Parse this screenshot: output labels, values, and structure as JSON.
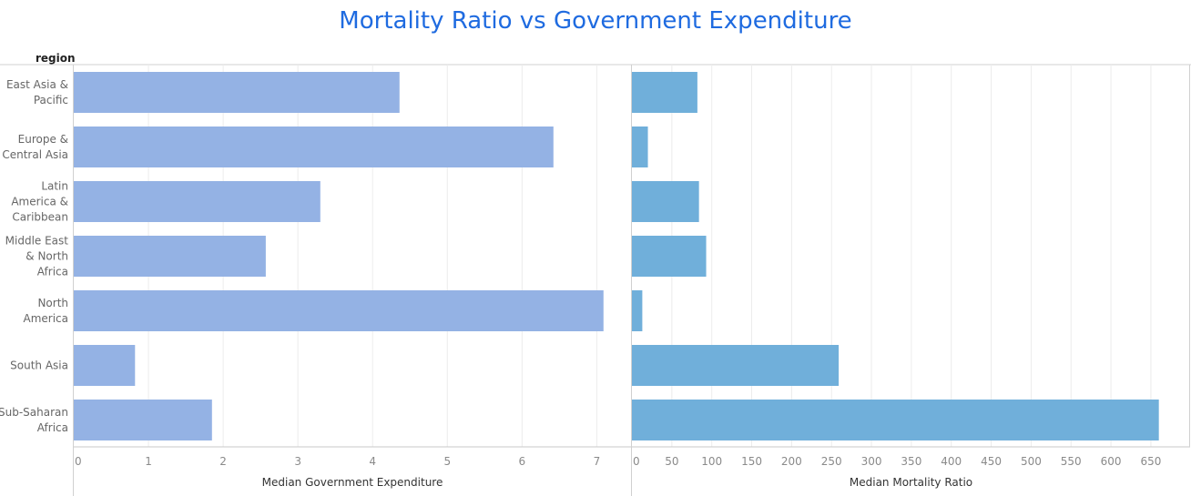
{
  "chart_data": {
    "type": "bar",
    "orientation": "horizontal",
    "title": "Mortality Ratio vs Government Expenditure",
    "row_header": "region",
    "categories": [
      "East Asia & Pacific",
      "Europe & Central Asia",
      "Latin America & Caribbean",
      "Middle East & North Africa",
      "North America",
      "South Asia",
      "Sub-Saharan Africa"
    ],
    "category_lines": [
      [
        "East Asia &",
        "Pacific"
      ],
      [
        "Europe &",
        "Central Asia"
      ],
      [
        "Latin",
        "America &",
        "Caribbean"
      ],
      [
        "Middle East",
        "& North",
        "Africa"
      ],
      [
        "North",
        "America"
      ],
      [
        "South Asia"
      ],
      [
        "Sub-Saharan",
        "Africa"
      ]
    ],
    "panels": [
      {
        "xlabel": "Median Government Expenditure",
        "values": [
          4.36,
          6.42,
          3.3,
          2.57,
          7.09,
          0.82,
          1.85
        ],
        "xlim": [
          0,
          7.3
        ],
        "ticks": [
          0,
          1,
          2,
          3,
          4,
          5,
          6,
          7
        ],
        "color": "#94b2e4"
      },
      {
        "xlabel": "Median Mortality Ratio",
        "values": [
          82,
          20,
          84,
          93,
          13,
          259,
          660
        ],
        "xlim": [
          0,
          690
        ],
        "ticks": [
          0,
          50,
          100,
          150,
          200,
          250,
          300,
          350,
          400,
          450,
          500,
          550,
          600,
          650
        ],
        "color": "#70afda"
      }
    ],
    "grid": true,
    "legend": "none"
  }
}
